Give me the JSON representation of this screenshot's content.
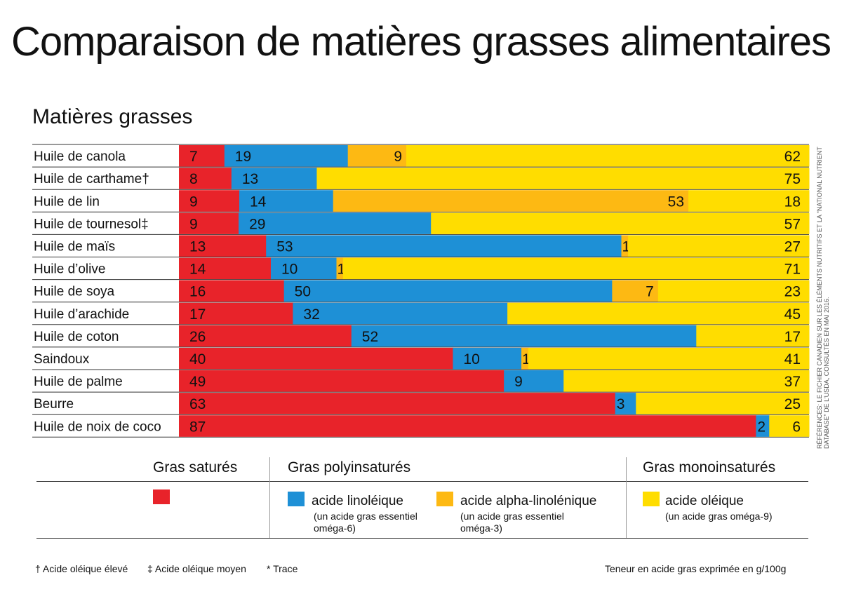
{
  "title": "Comparaison de matières grasses alimentaires",
  "section_title": "Matières grasses",
  "colors": {
    "saturated": "#E8232A",
    "linoleic": "#1E90D6",
    "alpha_linolenic": "#FDB913",
    "oleic": "#FFDD00"
  },
  "chart_data": {
    "type": "bar",
    "orientation": "horizontal",
    "stacked": true,
    "unit": "g/100g",
    "categories": [
      "Huile de canola",
      "Huile de carthame†",
      "Huile de lin",
      "Huile de tournesol‡",
      "Huile de maïs",
      "Huile d’olive",
      "Huile de soya",
      "Huile d’arachide",
      "Huile de coton",
      "Saindoux",
      "Huile de palme",
      "Beurre",
      "Huile de noix de coco"
    ],
    "series": [
      {
        "name": "Gras saturés",
        "color": "#E8232A",
        "values": [
          7,
          8,
          9,
          9,
          13,
          14,
          16,
          17,
          26,
          40,
          49,
          63,
          87
        ],
        "labels": [
          "7",
          "8",
          "9",
          "9",
          "13",
          "14",
          "16",
          "17",
          "26",
          "40",
          "49",
          "63",
          "87"
        ]
      },
      {
        "name": "acide linoléique",
        "color": "#1E90D6",
        "values": [
          19,
          13,
          14,
          29,
          53,
          10,
          50,
          32,
          52,
          10,
          9,
          3,
          2
        ],
        "labels": [
          "19",
          "13",
          "14",
          "29",
          "53",
          "10",
          "50",
          "32",
          "52",
          "10",
          "9",
          "3",
          "2"
        ]
      },
      {
        "name": "acide alpha-linolénique",
        "color": "#FDB913",
        "values": [
          9,
          0,
          53,
          0,
          1,
          1,
          7,
          0,
          0,
          1,
          0,
          0,
          0
        ],
        "labels": [
          "9",
          "*",
          "53",
          "*",
          "1",
          "1",
          "7",
          "",
          "*",
          "1",
          "*",
          "*",
          ""
        ]
      },
      {
        "name": "acide oléique",
        "color": "#FFDD00",
        "values": [
          62,
          75,
          18,
          57,
          27,
          71,
          23,
          45,
          17,
          41,
          37,
          25,
          6
        ],
        "labels": [
          "62",
          "75",
          "18",
          "57",
          "27",
          "71",
          "23",
          "45",
          "17",
          "41",
          "37",
          "25",
          "6"
        ]
      }
    ]
  },
  "legend": {
    "group_saturated": "Gras saturés",
    "group_poly": "Gras polyinsaturés",
    "group_mono": "Gras monoinsaturés",
    "linoleic_label": "acide linoléique",
    "linoleic_sub": "(un acide gras essentiel oméga-6)",
    "alpha_label": "acide alpha-linolénique",
    "alpha_sub": "(un acide gras essentiel oméga-3)",
    "oleic_label": "acide oléique",
    "oleic_sub": "(un acide gras oméga-9)"
  },
  "footnotes": {
    "dagger": "† Acide oléique élevé",
    "double_dagger": "‡ Acide oléique moyen",
    "trace": "* Trace",
    "units": "Teneur en acide gras exprimée en g/100g"
  },
  "source_note": "Références: Le fichier canadien sur les éléments nutritifs et la “National Nutrient Database” de l’USDA, consultés en mai 2016."
}
